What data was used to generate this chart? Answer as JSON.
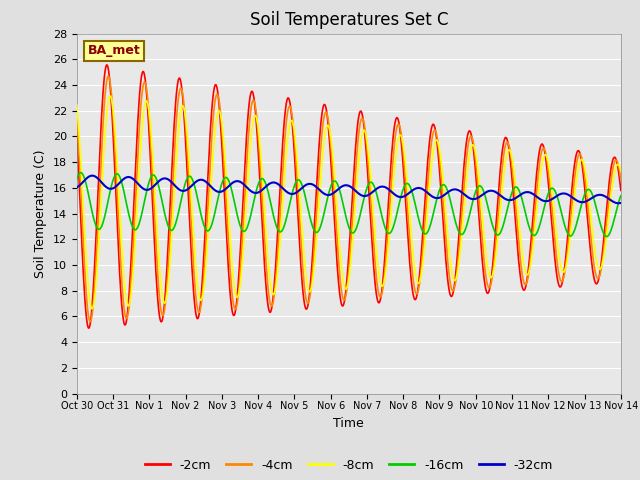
{
  "title": "Soil Temperatures Set C",
  "xlabel": "Time",
  "ylabel": "Soil Temperature (C)",
  "background_color": "#e0e0e0",
  "axes_bg_color": "#e8e8e8",
  "grid_color": "#ffffff",
  "tick_labels": [
    "Oct 30",
    "Oct 31",
    "Nov 1",
    "Nov 2",
    "Nov 3",
    "Nov 4",
    "Nov 5",
    "Nov 6",
    "Nov 7",
    "Nov 8",
    "Nov 9",
    "Nov 10",
    "Nov 11",
    "Nov 12",
    "Nov 13",
    "Nov 14"
  ],
  "legend_labels": [
    "-2cm",
    "-4cm",
    "-8cm",
    "-16cm",
    "-32cm"
  ],
  "legend_colors": [
    "#ff0000",
    "#ff8800",
    "#ffff00",
    "#00cc00",
    "#0000cc"
  ],
  "label_box_text": "BA_met",
  "label_box_bg": "#ffff99",
  "label_box_border": "#886600"
}
